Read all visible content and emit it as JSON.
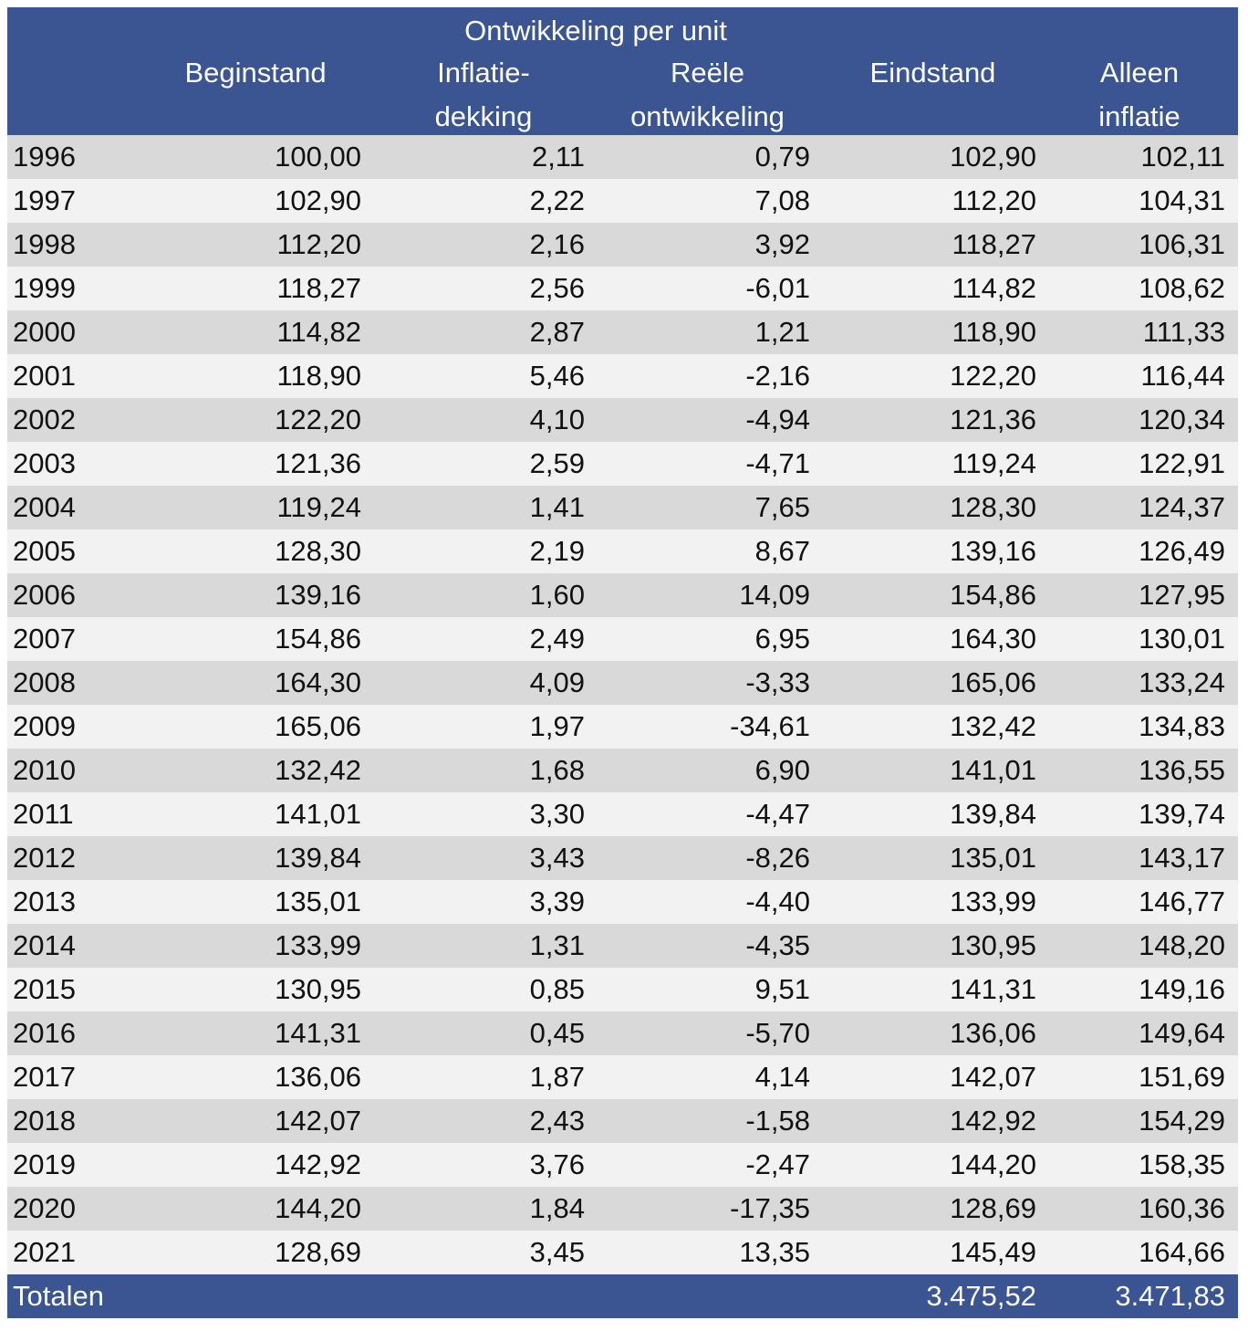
{
  "header": {
    "group_title": "Ontwikkeling per unit",
    "col_beginstand": "Beginstand",
    "col_inflatie_line1": "Inflatie-",
    "col_inflatie_line2": "dekking",
    "col_reele_line1": "Reële",
    "col_reele_line2": "ontwikkeling",
    "col_eindstand": "Eindstand",
    "col_alleen_line1": "Alleen",
    "col_alleen_line2": "inflatie"
  },
  "rows": [
    {
      "year": "1996",
      "begin": "100,00",
      "infl": "2,11",
      "reeel": "0,79",
      "eind": "102,90",
      "alleen": "102,11"
    },
    {
      "year": "1997",
      "begin": "102,90",
      "infl": "2,22",
      "reeel": "7,08",
      "eind": "112,20",
      "alleen": "104,31"
    },
    {
      "year": "1998",
      "begin": "112,20",
      "infl": "2,16",
      "reeel": "3,92",
      "eind": "118,27",
      "alleen": "106,31"
    },
    {
      "year": "1999",
      "begin": "118,27",
      "infl": "2,56",
      "reeel": "-6,01",
      "eind": "114,82",
      "alleen": "108,62"
    },
    {
      "year": "2000",
      "begin": "114,82",
      "infl": "2,87",
      "reeel": "1,21",
      "eind": "118,90",
      "alleen": "111,33"
    },
    {
      "year": "2001",
      "begin": "118,90",
      "infl": "5,46",
      "reeel": "-2,16",
      "eind": "122,20",
      "alleen": "116,44"
    },
    {
      "year": "2002",
      "begin": "122,20",
      "infl": "4,10",
      "reeel": "-4,94",
      "eind": "121,36",
      "alleen": "120,34"
    },
    {
      "year": "2003",
      "begin": "121,36",
      "infl": "2,59",
      "reeel": "-4,71",
      "eind": "119,24",
      "alleen": "122,91"
    },
    {
      "year": "2004",
      "begin": "119,24",
      "infl": "1,41",
      "reeel": "7,65",
      "eind": "128,30",
      "alleen": "124,37"
    },
    {
      "year": "2005",
      "begin": "128,30",
      "infl": "2,19",
      "reeel": "8,67",
      "eind": "139,16",
      "alleen": "126,49"
    },
    {
      "year": "2006",
      "begin": "139,16",
      "infl": "1,60",
      "reeel": "14,09",
      "eind": "154,86",
      "alleen": "127,95"
    },
    {
      "year": "2007",
      "begin": "154,86",
      "infl": "2,49",
      "reeel": "6,95",
      "eind": "164,30",
      "alleen": "130,01"
    },
    {
      "year": "2008",
      "begin": "164,30",
      "infl": "4,09",
      "reeel": "-3,33",
      "eind": "165,06",
      "alleen": "133,24"
    },
    {
      "year": "2009",
      "begin": "165,06",
      "infl": "1,97",
      "reeel": "-34,61",
      "eind": "132,42",
      "alleen": "134,83"
    },
    {
      "year": "2010",
      "begin": "132,42",
      "infl": "1,68",
      "reeel": "6,90",
      "eind": "141,01",
      "alleen": "136,55"
    },
    {
      "year": "2011",
      "begin": "141,01",
      "infl": "3,30",
      "reeel": "-4,47",
      "eind": "139,84",
      "alleen": "139,74"
    },
    {
      "year": "2012",
      "begin": "139,84",
      "infl": "3,43",
      "reeel": "-8,26",
      "eind": "135,01",
      "alleen": "143,17"
    },
    {
      "year": "2013",
      "begin": "135,01",
      "infl": "3,39",
      "reeel": "-4,40",
      "eind": "133,99",
      "alleen": "146,77"
    },
    {
      "year": "2014",
      "begin": "133,99",
      "infl": "1,31",
      "reeel": "-4,35",
      "eind": "130,95",
      "alleen": "148,20"
    },
    {
      "year": "2015",
      "begin": "130,95",
      "infl": "0,85",
      "reeel": "9,51",
      "eind": "141,31",
      "alleen": "149,16"
    },
    {
      "year": "2016",
      "begin": "141,31",
      "infl": "0,45",
      "reeel": "-5,70",
      "eind": "136,06",
      "alleen": "149,64"
    },
    {
      "year": "2017",
      "begin": "136,06",
      "infl": "1,87",
      "reeel": "4,14",
      "eind": "142,07",
      "alleen": "151,69"
    },
    {
      "year": "2018",
      "begin": "142,07",
      "infl": "2,43",
      "reeel": "-1,58",
      "eind": "142,92",
      "alleen": "154,29"
    },
    {
      "year": "2019",
      "begin": "142,92",
      "infl": "3,76",
      "reeel": "-2,47",
      "eind": "144,20",
      "alleen": "158,35"
    },
    {
      "year": "2020",
      "begin": "144,20",
      "infl": "1,84",
      "reeel": "-17,35",
      "eind": "128,69",
      "alleen": "160,36"
    },
    {
      "year": "2021",
      "begin": "128,69",
      "infl": "3,45",
      "reeel": "13,35",
      "eind": "145,49",
      "alleen": "164,66"
    }
  ],
  "footer": {
    "label": "Totalen",
    "eind_total": "3.475,52",
    "alleen_total": "3.471,83"
  },
  "colors": {
    "header_bg": "#3a5592",
    "row_dark": "#d9d9d9",
    "row_light": "#f2f2f2"
  }
}
